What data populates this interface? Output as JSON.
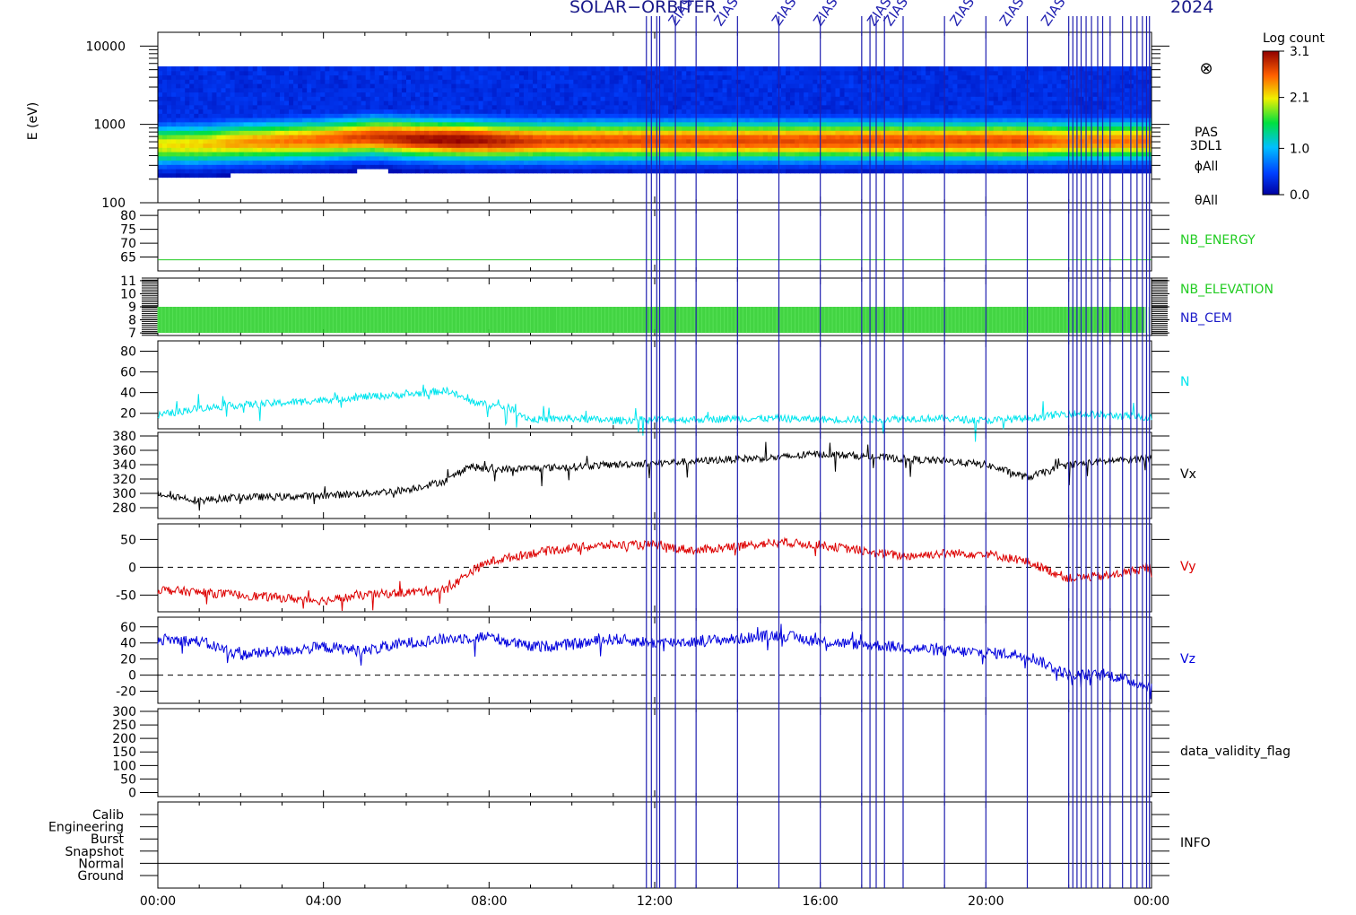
{
  "header": {
    "left": "SOLAR−ORBITER",
    "right": "2024",
    "event_label": "ZIAS"
  },
  "colors": {
    "background": "#ffffff",
    "axes": "#000000",
    "event_line": "#1f1fb0",
    "nb_energy": "#22cc22",
    "nb_elevation": "#22cc22",
    "nb_cem": "#1a1ac8",
    "n": "#00e5ee",
    "vx": "#000000",
    "vy": "#dd0000",
    "vz": "#0000dd"
  },
  "colorbar": {
    "title": "Log count",
    "ticks": [
      "3.1",
      "2.1",
      "1.0",
      "0.0"
    ]
  },
  "chart_data": [
    {
      "type": "heatmap",
      "id": "spectrogram",
      "ylabel": "E (eV)",
      "yscale": "log",
      "ylim": [
        100,
        15000
      ],
      "yticks": [
        "10000",
        "1000",
        "100"
      ],
      "right_labels": [
        "PAS",
        "3DL1",
        "ϕAll",
        "θAll"
      ],
      "symbol": "⊗",
      "clim": [
        0.0,
        3.1
      ],
      "peak_energy_eV": [
        550,
        560,
        600,
        620,
        650,
        700,
        660,
        640,
        620,
        620,
        620,
        620,
        620,
        620,
        620,
        620,
        620,
        620,
        620,
        620,
        620,
        620,
        620,
        620
      ],
      "peak_intensity": [
        2.1,
        2.2,
        2.4,
        2.5,
        2.6,
        2.8,
        3.0,
        3.1,
        2.9,
        2.7,
        2.7,
        2.7,
        2.7,
        2.7,
        2.7,
        2.7,
        2.7,
        2.7,
        2.7,
        2.7,
        2.7,
        2.5,
        2.5,
        2.5
      ]
    },
    {
      "type": "line",
      "id": "nb_energy",
      "series": [
        {
          "name": "NB_ENERGY"
        }
      ],
      "ylim": [
        60,
        82
      ],
      "yticks": [
        65,
        70,
        75,
        80
      ],
      "x": [
        0,
        24
      ],
      "y": [
        64,
        64
      ]
    },
    {
      "type": "line",
      "id": "nb",
      "series": [
        {
          "name": "NB_ELEVATION"
        },
        {
          "name": "NB_CEM"
        }
      ],
      "ylim": [
        6.8,
        11.2
      ],
      "yticks": [
        7,
        8,
        9,
        10,
        11
      ],
      "band": [
        7,
        9
      ],
      "gaps": [
        9.55,
        12.4
      ]
    },
    {
      "type": "line",
      "id": "n",
      "series": [
        {
          "name": "N"
        }
      ],
      "ylim": [
        5,
        90
      ],
      "yticks": [
        20,
        40,
        60,
        80
      ],
      "x": [
        0,
        1,
        2,
        3,
        4,
        5,
        6,
        7,
        7.5,
        8,
        8.5,
        9,
        10,
        11,
        12,
        13,
        14,
        15,
        16,
        17,
        18,
        19,
        20,
        21,
        22,
        23,
        24
      ],
      "y": [
        18,
        25,
        28,
        30,
        33,
        36,
        38,
        42,
        32,
        28,
        25,
        14,
        15,
        13,
        14,
        14,
        15,
        15,
        14,
        14,
        15,
        15,
        13,
        15,
        20,
        18,
        16
      ]
    },
    {
      "type": "line",
      "id": "vx",
      "series": [
        {
          "name": "Vx"
        }
      ],
      "ylim": [
        265,
        385
      ],
      "yticks": [
        280,
        300,
        320,
        340,
        360,
        380
      ],
      "x": [
        0,
        1,
        2,
        3,
        4,
        5,
        6,
        7,
        7.5,
        8,
        9,
        10,
        11,
        12,
        13,
        14,
        15,
        16,
        17,
        18,
        19,
        20,
        21,
        22,
        23,
        24
      ],
      "y": [
        300,
        290,
        295,
        295,
        297,
        300,
        305,
        318,
        338,
        333,
        335,
        337,
        340,
        342,
        345,
        348,
        350,
        355,
        352,
        348,
        345,
        340,
        322,
        340,
        345,
        350
      ]
    },
    {
      "type": "line",
      "id": "vy",
      "series": [
        {
          "name": "Vy"
        }
      ],
      "ylim": [
        -80,
        78
      ],
      "yticks": [
        -50,
        0,
        50
      ],
      "zero_line": true,
      "x": [
        0,
        1,
        2,
        3,
        4,
        5,
        6,
        7,
        7.5,
        8,
        9,
        10,
        11,
        12,
        13,
        14,
        15,
        16,
        17,
        18,
        19,
        20,
        21,
        22,
        23,
        24
      ],
      "y": [
        -40,
        -45,
        -50,
        -55,
        -60,
        -50,
        -45,
        -40,
        -10,
        10,
        25,
        35,
        40,
        40,
        30,
        38,
        45,
        40,
        30,
        20,
        25,
        25,
        10,
        -20,
        -15,
        0
      ]
    },
    {
      "type": "line",
      "id": "vz",
      "series": [
        {
          "name": "Vz"
        }
      ],
      "ylim": [
        -35,
        72
      ],
      "yticks": [
        -20,
        0,
        20,
        40,
        60
      ],
      "zero_line": true,
      "x": [
        0,
        1,
        2,
        3,
        4,
        5,
        6,
        7,
        8,
        9,
        10,
        11,
        12,
        13,
        14,
        15,
        16,
        17,
        18,
        19,
        20,
        21,
        22,
        23,
        24
      ],
      "y": [
        45,
        42,
        25,
        30,
        35,
        30,
        40,
        45,
        48,
        35,
        38,
        45,
        40,
        42,
        45,
        50,
        42,
        38,
        35,
        30,
        28,
        25,
        0,
        0,
        -15
      ]
    },
    {
      "type": "line",
      "id": "dvf",
      "series": [
        {
          "name": "data_validity_flag"
        }
      ],
      "ylim": [
        -15,
        310
      ],
      "yticks": [
        0,
        50,
        100,
        150,
        200,
        250,
        300
      ]
    },
    {
      "type": "table",
      "id": "info",
      "series": [
        {
          "name": "INFO"
        }
      ],
      "yticks": [
        "Calib",
        "Engineering",
        "Burst",
        "Snapshot",
        "Normal",
        "Ground"
      ],
      "mode_line_at": "Normal"
    }
  ],
  "x_axis": {
    "range_hours": [
      0,
      24
    ],
    "tick_labels": [
      "00:00",
      "04:00",
      "08:00",
      "12:00",
      "16:00",
      "20:00",
      "00:00"
    ],
    "tick_hours": [
      0,
      4,
      8,
      12,
      16,
      20,
      24
    ]
  },
  "events": [
    11.8,
    11.92,
    12.05,
    12.12,
    12.5,
    13.0,
    14.0,
    15.0,
    16.0,
    17.0,
    17.2,
    17.35,
    17.55,
    18.0,
    19.0,
    20.0,
    21.0,
    22.0,
    22.1,
    22.2,
    22.3,
    22.42,
    22.55,
    22.7,
    22.82,
    23.0,
    23.3,
    23.5,
    23.65,
    23.78,
    23.88,
    23.95
  ]
}
